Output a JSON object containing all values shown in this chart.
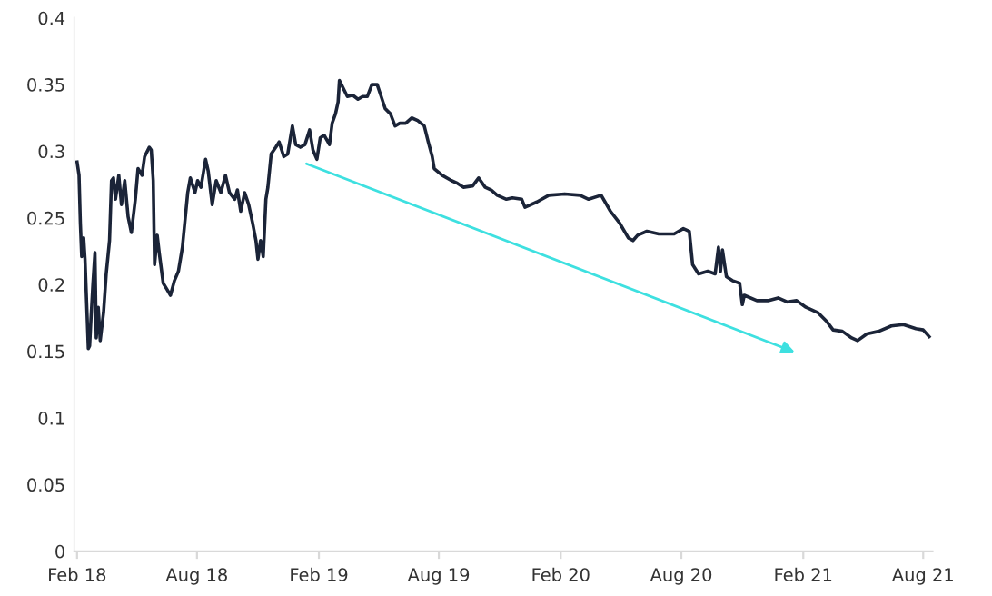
{
  "chart_data": {
    "type": "line",
    "x": [
      "2018-02-01",
      "2018-02-04",
      "2018-02-06",
      "2018-02-08",
      "2018-02-11",
      "2018-02-13",
      "2018-02-16",
      "2018-02-18",
      "2018-02-20",
      "2018-02-22",
      "2018-02-25",
      "2018-02-28",
      "2018-03-02",
      "2018-03-05",
      "2018-03-08",
      "2018-03-13",
      "2018-03-17",
      "2018-03-22",
      "2018-03-25",
      "2018-03-28",
      "2018-03-31",
      "2018-04-05",
      "2018-04-09",
      "2018-04-14",
      "2018-04-19",
      "2018-04-24",
      "2018-04-30",
      "2018-05-04",
      "2018-05-10",
      "2018-05-14",
      "2018-05-21",
      "2018-05-24",
      "2018-05-27",
      "2018-05-29",
      "2018-06-02",
      "2018-06-05",
      "2018-06-11",
      "2018-06-16",
      "2018-06-22",
      "2018-06-28",
      "2018-07-04",
      "2018-07-10",
      "2018-07-18",
      "2018-07-22",
      "2018-07-29",
      "2018-08-02",
      "2018-08-07",
      "2018-08-14",
      "2018-08-18",
      "2018-08-24",
      "2018-08-30",
      "2018-09-06",
      "2018-09-13",
      "2018-09-19",
      "2018-09-27",
      "2018-10-01",
      "2018-10-06",
      "2018-10-12",
      "2018-10-18",
      "2018-10-24",
      "2018-10-29",
      "2018-11-01",
      "2018-11-05",
      "2018-11-09",
      "2018-11-13",
      "2018-11-16",
      "2018-11-21",
      "2018-11-28",
      "2018-12-03",
      "2018-12-10",
      "2018-12-16",
      "2018-12-23",
      "2018-12-28",
      "2019-01-04",
      "2019-01-11",
      "2019-01-18",
      "2019-01-23",
      "2019-01-29",
      "2019-02-03",
      "2019-02-09",
      "2019-02-17",
      "2019-02-21",
      "2019-02-26",
      "2019-03-02",
      "2019-03-04",
      "2019-03-09",
      "2019-03-16",
      "2019-03-24",
      "2019-04-01",
      "2019-04-08",
      "2019-04-15",
      "2019-04-22",
      "2019-04-30",
      "2019-05-06",
      "2019-05-12",
      "2019-05-20",
      "2019-05-27",
      "2019-06-03",
      "2019-06-12",
      "2019-06-21",
      "2019-06-30",
      "2019-07-10",
      "2019-07-16",
      "2019-07-22",
      "2019-07-25",
      "2019-08-06",
      "2019-08-20",
      "2019-08-29",
      "2019-09-07",
      "2019-09-21",
      "2019-09-30",
      "2019-10-10",
      "2019-10-19",
      "2019-10-28",
      "2019-11-11",
      "2019-11-20",
      "2019-12-04",
      "2019-12-09",
      "2019-12-27",
      "2020-01-14",
      "2020-02-07",
      "2020-03-01",
      "2020-03-14",
      "2020-04-02",
      "2020-04-16",
      "2020-04-30",
      "2020-05-13",
      "2020-05-20",
      "2020-05-27",
      "2020-06-10",
      "2020-06-28",
      "2020-07-21",
      "2020-08-04",
      "2020-08-13",
      "2020-08-18",
      "2020-08-27",
      "2020-09-10",
      "2020-09-21",
      "2020-09-26",
      "2020-09-29",
      "2020-10-02",
      "2020-10-08",
      "2020-10-17",
      "2020-10-28",
      "2020-11-01",
      "2020-11-04",
      "2020-11-23",
      "2020-12-11",
      "2020-12-25",
      "2021-01-08",
      "2021-01-22",
      "2021-02-05",
      "2021-02-23",
      "2021-03-09",
      "2021-03-18",
      "2021-04-01",
      "2021-04-15",
      "2021-04-24",
      "2021-05-08",
      "2021-05-26",
      "2021-06-14",
      "2021-07-02",
      "2021-07-21",
      "2021-08-01",
      "2021-08-10"
    ],
    "series": [
      {
        "color": "#1b2438",
        "values": [
          0.292,
          0.282,
          0.246,
          0.221,
          0.235,
          0.219,
          0.179,
          0.152,
          0.154,
          0.174,
          0.201,
          0.224,
          0.16,
          0.183,
          0.158,
          0.179,
          0.208,
          0.233,
          0.278,
          0.28,
          0.264,
          0.282,
          0.26,
          0.278,
          0.251,
          0.239,
          0.264,
          0.287,
          0.282,
          0.296,
          0.303,
          0.301,
          0.278,
          0.215,
          0.237,
          0.224,
          0.201,
          0.197,
          0.192,
          0.203,
          0.21,
          0.228,
          0.269,
          0.28,
          0.269,
          0.278,
          0.273,
          0.294,
          0.285,
          0.26,
          0.278,
          0.269,
          0.282,
          0.269,
          0.264,
          0.271,
          0.255,
          0.269,
          0.26,
          0.246,
          0.233,
          0.219,
          0.233,
          0.221,
          0.264,
          0.273,
          0.298,
          0.303,
          0.307,
          0.296,
          0.298,
          0.319,
          0.305,
          0.303,
          0.305,
          0.316,
          0.301,
          0.294,
          0.31,
          0.312,
          0.305,
          0.321,
          0.328,
          0.337,
          0.353,
          0.348,
          0.341,
          0.342,
          0.339,
          0.341,
          0.341,
          0.35,
          0.35,
          0.341,
          0.332,
          0.328,
          0.319,
          0.321,
          0.321,
          0.325,
          0.323,
          0.319,
          0.307,
          0.296,
          0.287,
          0.282,
          0.278,
          0.276,
          0.273,
          0.274,
          0.28,
          0.273,
          0.271,
          0.267,
          0.264,
          0.265,
          0.264,
          0.258,
          0.262,
          0.267,
          0.268,
          0.267,
          0.264,
          0.267,
          0.255,
          0.246,
          0.235,
          0.233,
          0.237,
          0.24,
          0.238,
          0.238,
          0.242,
          0.24,
          0.215,
          0.208,
          0.21,
          0.208,
          0.228,
          0.21,
          0.226,
          0.206,
          0.203,
          0.201,
          0.185,
          0.192,
          0.188,
          0.188,
          0.19,
          0.187,
          0.188,
          0.183,
          0.179,
          0.172,
          0.166,
          0.165,
          0.16,
          0.158,
          0.163,
          0.165,
          0.169,
          0.17,
          0.167,
          0.166,
          0.161
        ]
      }
    ],
    "xlim": [
      "2018-01-28",
      "2021-08-15"
    ],
    "xticks": [
      {
        "value": "2018-02-01",
        "label": "Feb 18"
      },
      {
        "value": "2018-08-01",
        "label": "Aug 18"
      },
      {
        "value": "2019-02-01",
        "label": "Feb 19"
      },
      {
        "value": "2019-08-01",
        "label": "Aug 19"
      },
      {
        "value": "2020-02-01",
        "label": "Feb 20"
      },
      {
        "value": "2020-08-01",
        "label": "Aug 20"
      },
      {
        "value": "2021-02-01",
        "label": "Feb 21"
      },
      {
        "value": "2021-08-01",
        "label": "Aug 21"
      }
    ],
    "ylim": [
      0,
      0.4
    ],
    "yticks": [
      0,
      0.05,
      0.1,
      0.15,
      0.2,
      0.25,
      0.3,
      0.35,
      0.4
    ],
    "grid": false,
    "marker": "none",
    "line_style": "solid"
  }
}
